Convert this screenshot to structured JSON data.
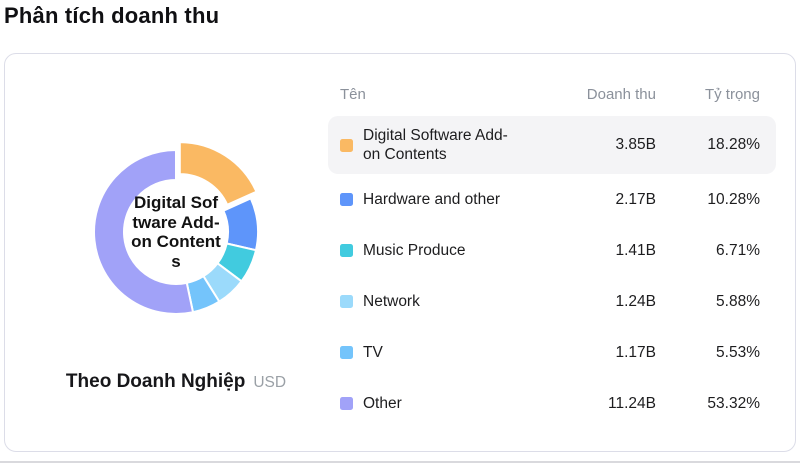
{
  "page": {
    "title": "Phân tích doanh thu"
  },
  "card": {
    "footer_label": "Theo Doanh Nghiệp",
    "footer_unit": "USD"
  },
  "table": {
    "headers": {
      "name": "Tên",
      "revenue": "Doanh thu",
      "share": "Tỷ trọng"
    },
    "rows": [
      {
        "name": "Digital Software Add-on Contents",
        "revenue": "3.85B",
        "share": "18.28%",
        "color": "#FAB963",
        "highlighted": true
      },
      {
        "name": "Hardware and other",
        "revenue": "2.17B",
        "share": "10.28%",
        "color": "#5E95FA",
        "highlighted": false
      },
      {
        "name": "Music Produce",
        "revenue": "1.41B",
        "share": "6.71%",
        "color": "#41CBDF",
        "highlighted": false
      },
      {
        "name": "Network",
        "revenue": "1.24B",
        "share": "5.88%",
        "color": "#9BDAFB",
        "highlighted": false
      },
      {
        "name": "TV",
        "revenue": "1.17B",
        "share": "5.53%",
        "color": "#74C4FB",
        "highlighted": false
      },
      {
        "name": "Other",
        "revenue": "11.24B",
        "share": "53.32%",
        "color": "#A1A2F8",
        "highlighted": false
      }
    ]
  },
  "chart_data": {
    "type": "pie",
    "subtype": "donut",
    "title": "Phân tích doanh thu",
    "grouping_label": "Theo Doanh Nghiệp",
    "unit": "USD",
    "categories": [
      "Digital Software Add-on Contents",
      "Hardware and other",
      "Music Produce",
      "Network",
      "TV",
      "Other"
    ],
    "values_billions_usd": [
      3.85,
      2.17,
      1.41,
      1.24,
      1.17,
      11.24
    ],
    "percentages": [
      18.28,
      10.28,
      6.71,
      5.88,
      5.53,
      53.32
    ],
    "colors": [
      "#FAB963",
      "#5E95FA",
      "#41CBDF",
      "#9BDAFB",
      "#74C4FB",
      "#A1A2F8"
    ],
    "selected_index": 0,
    "selected_label": "Digital Software Add-on Contents",
    "center_label_lines": [
      "Digital Sof",
      "tware Add-",
      "on Content",
      "s"
    ],
    "start_angle_deg": 0,
    "clockwise": true,
    "legend_position": "right-table"
  }
}
